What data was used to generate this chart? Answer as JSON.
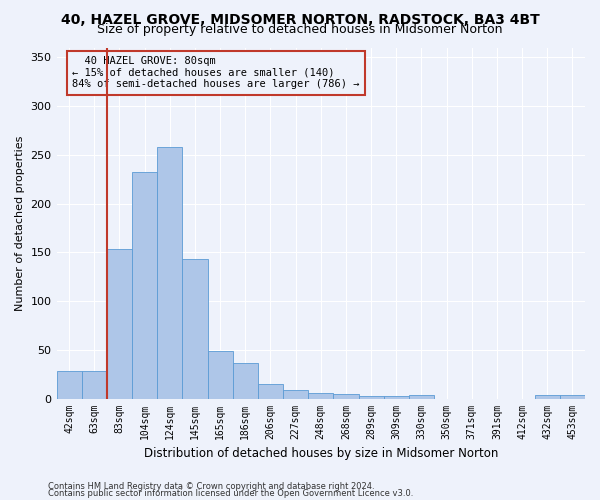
{
  "title": "40, HAZEL GROVE, MIDSOMER NORTON, RADSTOCK, BA3 4BT",
  "subtitle": "Size of property relative to detached houses in Midsomer Norton",
  "xlabel": "Distribution of detached houses by size in Midsomer Norton",
  "ylabel": "Number of detached properties",
  "footnote1": "Contains HM Land Registry data © Crown copyright and database right 2024.",
  "footnote2": "Contains public sector information licensed under the Open Government Licence v3.0.",
  "categories": [
    "42sqm",
    "63sqm",
    "83sqm",
    "104sqm",
    "124sqm",
    "145sqm",
    "165sqm",
    "186sqm",
    "206sqm",
    "227sqm",
    "248sqm",
    "268sqm",
    "289sqm",
    "309sqm",
    "330sqm",
    "350sqm",
    "371sqm",
    "391sqm",
    "412sqm",
    "432sqm",
    "453sqm"
  ],
  "values": [
    28,
    28,
    153,
    232,
    258,
    143,
    49,
    36,
    15,
    9,
    6,
    5,
    3,
    3,
    4,
    0,
    0,
    0,
    0,
    4,
    4
  ],
  "bar_color": "#aec6e8",
  "bar_edge_color": "#5b9bd5",
  "highlight_bar_color": "#c0392b",
  "ylim": [
    0,
    360
  ],
  "yticks": [
    0,
    50,
    100,
    150,
    200,
    250,
    300,
    350
  ],
  "annotation_text": "  40 HAZEL GROVE: 80sqm\n← 15% of detached houses are smaller (140)\n84% of semi-detached houses are larger (786) →",
  "vline_x": 1.5,
  "background_color": "#eef2fb",
  "grid_color": "#ffffff",
  "title_fontsize": 10,
  "subtitle_fontsize": 9,
  "ylabel_fontsize": 8,
  "xlabel_fontsize": 8.5,
  "tick_fontsize": 7,
  "annot_fontsize": 7.5,
  "footnote_fontsize": 6
}
